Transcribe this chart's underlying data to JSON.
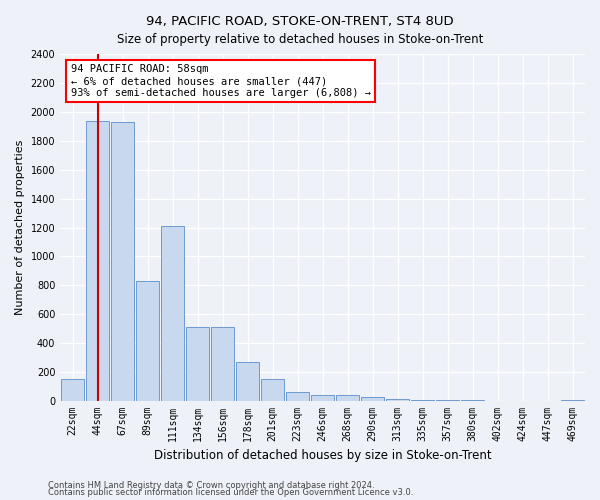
{
  "title": "94, PACIFIC ROAD, STOKE-ON-TRENT, ST4 8UD",
  "subtitle": "Size of property relative to detached houses in Stoke-on-Trent",
  "xlabel": "Distribution of detached houses by size in Stoke-on-Trent",
  "ylabel": "Number of detached properties",
  "categories": [
    "22sqm",
    "44sqm",
    "67sqm",
    "89sqm",
    "111sqm",
    "134sqm",
    "156sqm",
    "178sqm",
    "201sqm",
    "223sqm",
    "246sqm",
    "268sqm",
    "290sqm",
    "313sqm",
    "335sqm",
    "357sqm",
    "380sqm",
    "402sqm",
    "424sqm",
    "447sqm",
    "469sqm"
  ],
  "values": [
    150,
    1940,
    1930,
    830,
    1210,
    510,
    510,
    270,
    155,
    65,
    45,
    40,
    30,
    15,
    10,
    8,
    5,
    3,
    2,
    2,
    5
  ],
  "bar_color": "#c8d8ee",
  "bar_edge_color": "#5b8fcc",
  "vline_x_index": 1,
  "vline_color": "#cc0000",
  "annotation_text": "94 PACIFIC ROAD: 58sqm\n← 6% of detached houses are smaller (447)\n93% of semi-detached houses are larger (6,808) →",
  "ylim": [
    0,
    2400
  ],
  "yticks": [
    0,
    200,
    400,
    600,
    800,
    1000,
    1200,
    1400,
    1600,
    1800,
    2000,
    2200,
    2400
  ],
  "footer1": "Contains HM Land Registry data © Crown copyright and database right 2024.",
  "footer2": "Contains public sector information licensed under the Open Government Licence v3.0.",
  "bg_color": "#eef2f8",
  "grid_color": "#ffffff",
  "title_fontsize": 9.5,
  "subtitle_fontsize": 8.5,
  "ylabel_fontsize": 8,
  "xlabel_fontsize": 8.5,
  "tick_fontsize": 7,
  "annotation_fontsize": 7.5,
  "footer_fontsize": 6
}
